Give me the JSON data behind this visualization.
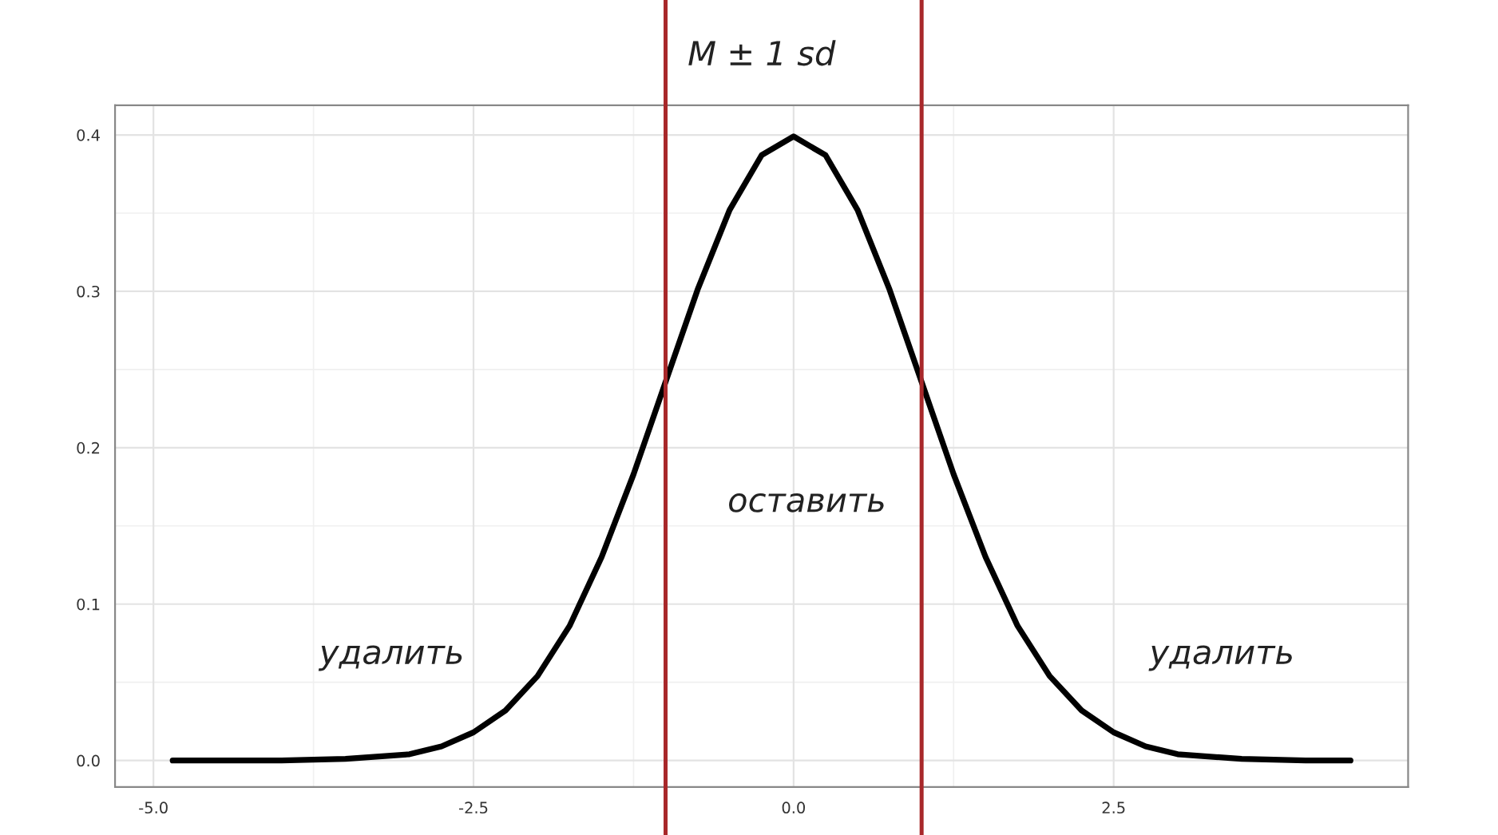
{
  "chart_data": {
    "type": "line",
    "title": "M ± 1 sd",
    "x": [
      -4.85,
      -4.0,
      -3.5,
      -3.0,
      -2.75,
      -2.5,
      -2.25,
      -2.0,
      -1.75,
      -1.5,
      -1.25,
      -1.0,
      -0.75,
      -0.5,
      -0.25,
      0.0,
      0.25,
      0.5,
      0.75,
      1.0,
      1.25,
      1.5,
      1.75,
      2.0,
      2.25,
      2.5,
      2.75,
      3.0,
      3.5,
      4.0,
      4.35
    ],
    "series": [
      {
        "color": "#000000",
        "values": [
          0.0,
          0.0,
          0.001,
          0.004,
          0.009,
          0.018,
          0.032,
          0.054,
          0.086,
          0.13,
          0.183,
          0.242,
          0.301,
          0.352,
          0.387,
          0.399,
          0.387,
          0.352,
          0.301,
          0.242,
          0.183,
          0.13,
          0.086,
          0.054,
          0.032,
          0.018,
          0.009,
          0.004,
          0.001,
          0.0,
          0.0
        ]
      }
    ],
    "xlim": [
      -5.3,
      4.8
    ],
    "ylim": [
      -0.017,
      0.419
    ],
    "xticks": [
      {
        "value": -5.0,
        "label": "-5.0"
      },
      {
        "value": -2.5,
        "label": "-2.5"
      },
      {
        "value": 0.0,
        "label": "0.0"
      },
      {
        "value": 2.5,
        "label": "2.5"
      }
    ],
    "yticks": [
      {
        "value": 0.0,
        "label": "0.0"
      },
      {
        "value": 0.1,
        "label": "0.1"
      },
      {
        "value": 0.2,
        "label": "0.2"
      },
      {
        "value": 0.3,
        "label": "0.3"
      },
      {
        "value": 0.4,
        "label": "0.4"
      }
    ],
    "ref_lines": [
      {
        "axis": "x",
        "value": -1.0,
        "color": "#a8282a"
      },
      {
        "axis": "x",
        "value": 1.0,
        "color": "#a8282a"
      }
    ],
    "annotations": [
      "удалить",
      "оставить",
      "удалить"
    ],
    "grid": true,
    "line_style": "solid",
    "marker": "none",
    "legend": false
  }
}
